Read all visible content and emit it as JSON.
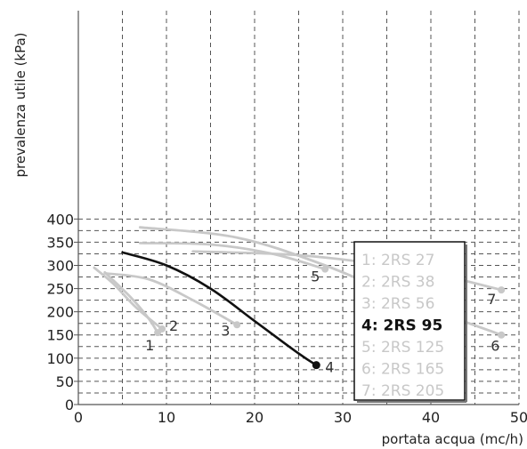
{
  "chart_data": {
    "type": "line",
    "title": "",
    "xlabel": "portata acqua (mc/h)",
    "ylabel": "prevalenza utile (kPa)",
    "xlim": [
      0,
      50
    ],
    "ylim": [
      0,
      420
    ],
    "xticks": [
      0,
      10,
      20,
      30,
      40,
      50
    ],
    "yticks": [
      0,
      50,
      100,
      150,
      200,
      250,
      300,
      350,
      400
    ],
    "grid": "dashed",
    "legend_position": "bottom-right",
    "highlight_series": "4: 2RS 95",
    "colors": {
      "highlight": "#111111",
      "muted": "#c8c8c8",
      "grid": "#555555"
    },
    "series": [
      {
        "name": "1: 2RS 27",
        "label": "1",
        "x": [
          3.0,
          6.0,
          8.0,
          9.0
        ],
        "y": [
          285,
          230,
          185,
          155
        ]
      },
      {
        "name": "2: 2RS 38",
        "label": "2",
        "x": [
          1.8,
          4.0,
          6.5,
          9.5
        ],
        "y": [
          295,
          260,
          210,
          163
        ]
      },
      {
        "name": "3: 2RS 56",
        "label": "3",
        "x": [
          3.0,
          8.0,
          13.0,
          18.0
        ],
        "y": [
          283,
          270,
          225,
          172
        ]
      },
      {
        "name": "4: 2RS 95",
        "label": "4",
        "x": [
          5.0,
          10.0,
          15.0,
          20.0,
          25.0,
          27.0
        ],
        "y": [
          328,
          300,
          250,
          180,
          110,
          85
        ]
      },
      {
        "name": "5: 2RS 125",
        "label": "5",
        "x": [
          7.0,
          15.0,
          22.0,
          28.0
        ],
        "y": [
          348,
          345,
          325,
          292
        ]
      },
      {
        "name": "6: 2RS 165",
        "label": "6",
        "x": [
          7.0,
          18.0,
          28.0,
          38.0,
          48.0
        ],
        "y": [
          382,
          360,
          300,
          220,
          150
        ]
      },
      {
        "name": "7: 2RS 205",
        "label": "7",
        "x": [
          13.0,
          25.0,
          35.0,
          42.0,
          48.0
        ],
        "y": [
          330,
          322,
          300,
          275,
          247
        ]
      }
    ]
  }
}
